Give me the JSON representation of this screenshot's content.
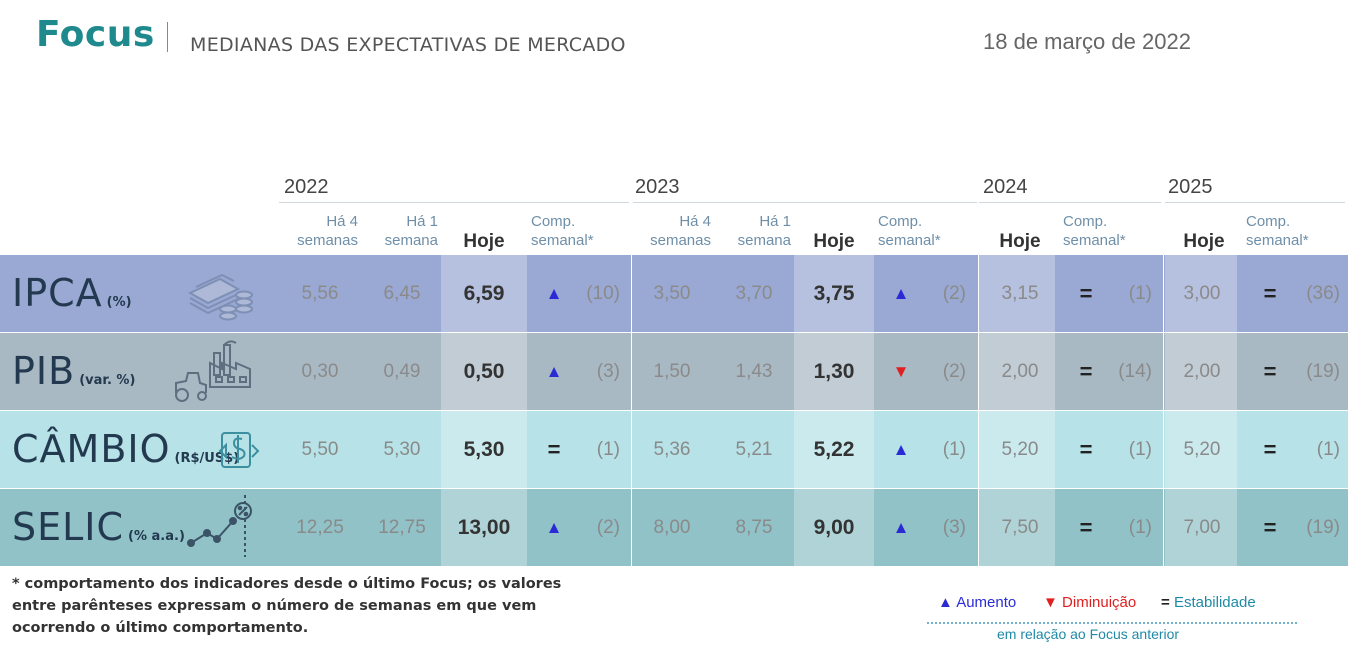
{
  "header": {
    "brand": "Focus",
    "subtitle": "MEDIANAS DAS EXPECTATIVAS DE MERCADO",
    "date": "18 de março de 2022"
  },
  "years": [
    "2022",
    "2023",
    "2024",
    "2025"
  ],
  "col_headers": {
    "ha4_line1": "Há 4",
    "ha4_line2": "semanas",
    "ha1_line1": "Há 1",
    "ha1_line2": "semana",
    "hoje": "Hoje",
    "comp_line1": "Comp.",
    "comp_line2": "semanal*"
  },
  "rows": [
    {
      "name": "IPCA",
      "unit": "(%)",
      "icon": "money-stack-icon",
      "bg": "#9aa9d3",
      "y2022": {
        "ha4": "5,56",
        "ha1": "6,45",
        "hoje": "6,59",
        "comp": "up",
        "weeks": "(10)"
      },
      "y2023": {
        "ha4": "3,50",
        "ha1": "3,70",
        "hoje": "3,75",
        "comp": "up",
        "weeks": "(2)"
      },
      "y2024": {
        "hoje": "3,15",
        "comp": "eq",
        "weeks": "(1)"
      },
      "y2025": {
        "hoje": "3,00",
        "comp": "eq",
        "weeks": "(36)"
      }
    },
    {
      "name": "PIB",
      "unit": "(var. %)",
      "icon": "factory-tractor-icon",
      "bg": "#a9b9c4",
      "y2022": {
        "ha4": "0,30",
        "ha1": "0,49",
        "hoje": "0,50",
        "comp": "up",
        "weeks": "(3)"
      },
      "y2023": {
        "ha4": "1,50",
        "ha1": "1,43",
        "hoje": "1,30",
        "comp": "down",
        "weeks": "(2)"
      },
      "y2024": {
        "hoje": "2,00",
        "comp": "eq",
        "weeks": "(14)"
      },
      "y2025": {
        "hoje": "2,00",
        "comp": "eq",
        "weeks": "(19)"
      }
    },
    {
      "name": "CÂMBIO",
      "unit": "(R$/US$)",
      "icon": "currency-exchange-icon",
      "bg": "#b7e2e7",
      "y2022": {
        "ha4": "5,50",
        "ha1": "5,30",
        "hoje": "5,30",
        "comp": "eq",
        "weeks": "(1)"
      },
      "y2023": {
        "ha4": "5,36",
        "ha1": "5,21",
        "hoje": "5,22",
        "comp": "up",
        "weeks": "(1)"
      },
      "y2024": {
        "hoje": "5,20",
        "comp": "eq",
        "weeks": "(1)"
      },
      "y2025": {
        "hoje": "5,20",
        "comp": "eq",
        "weeks": "(1)"
      }
    },
    {
      "name": "SELIC",
      "unit": "(% a.a.)",
      "icon": "interest-rate-chart-icon",
      "bg": "#90c2c8",
      "y2022": {
        "ha4": "12,25",
        "ha1": "12,75",
        "hoje": "13,00",
        "comp": "up",
        "weeks": "(2)"
      },
      "y2023": {
        "ha4": "8,00",
        "ha1": "8,75",
        "hoje": "9,00",
        "comp": "up",
        "weeks": "(3)"
      },
      "y2024": {
        "hoje": "7,50",
        "comp": "eq",
        "weeks": "(1)"
      },
      "y2025": {
        "hoje": "7,00",
        "comp": "eq",
        "weeks": "(19)"
      }
    }
  ],
  "footnote": "* comportamento dos indicadores desde o último Focus; os valores entre parênteses expressam o número de semanas em que vem ocorrendo o último comportamento.",
  "legend": {
    "up_symbol": "▲",
    "up_label": "Aumento",
    "down_symbol": "▼",
    "down_label": "Diminuição",
    "eq_symbol": "=",
    "eq_label": "Estabilidade",
    "sub": "em relação ao Focus anterior"
  },
  "symbols": {
    "up": "▲",
    "down": "▼",
    "eq": "="
  },
  "colors": {
    "brand": "#1f8a8d",
    "up": "#2b2bd6",
    "down": "#e02020"
  }
}
